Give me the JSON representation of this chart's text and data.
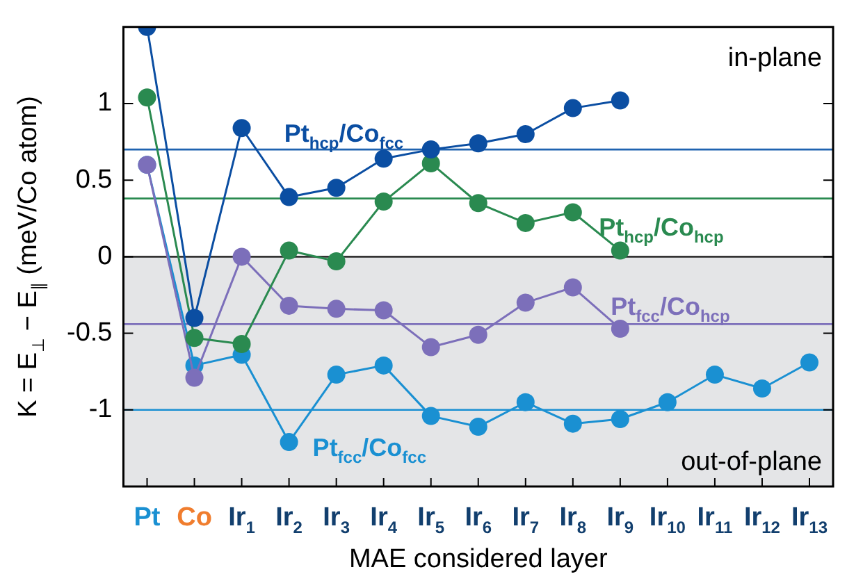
{
  "chart_data": {
    "type": "line",
    "xlabel": "MAE considered layer",
    "ylabel": "K = E$_{⊥}$ − E$_{∥}$ (meV/Co atom)",
    "categories": [
      "Pt",
      "Co",
      "Ir$_{1}$",
      "Ir$_{2}$",
      "Ir$_{3}$",
      "Ir$_{4}$",
      "Ir$_{5}$",
      "Ir$_{6}$",
      "Ir$_{7}$",
      "Ir$_{8}$",
      "Ir$_{9}$",
      "Ir$_{10}$",
      "Ir$_{11}$",
      "Ir$_{12}$",
      "Ir$_{13}$"
    ],
    "series": [
      {
        "name": "Pt$_{fcc}$/Co$_{fcc}$",
        "color": "#1a90d2",
        "values": [
          0.6,
          -0.71,
          -0.64,
          -1.21,
          -0.77,
          -0.71,
          -1.04,
          -1.11,
          -0.95,
          -1.09,
          -1.06,
          -0.95,
          -0.77,
          -0.86,
          -0.69
        ]
      },
      {
        "name": "Pt$_{fcc}$/Co$_{hcp}$",
        "color": "#7c6fba",
        "values": [
          0.6,
          -0.79,
          0.0,
          -0.32,
          -0.34,
          -0.35,
          -0.59,
          -0.51,
          -0.3,
          -0.2,
          -0.47,
          null,
          null,
          null,
          null
        ]
      },
      {
        "name": "Pt$_{hcp}$/Co$_{hcp}$",
        "color": "#2a8a50",
        "values": [
          1.04,
          -0.53,
          -0.57,
          0.04,
          -0.03,
          0.36,
          0.61,
          0.35,
          0.22,
          0.29,
          0.04,
          null,
          null,
          null,
          null
        ]
      },
      {
        "name": "Pt$_{hcp}$/Co$_{fcc}$",
        "color": "#0b4ea2",
        "values": [
          1.5,
          -0.4,
          0.84,
          0.39,
          0.45,
          0.64,
          0.7,
          0.74,
          0.8,
          0.97,
          1.02,
          null,
          null,
          null,
          null
        ]
      }
    ],
    "ylim": [
      -1.5,
      1.5
    ],
    "yticks": [
      -1,
      -0.5,
      0,
      0.5,
      1
    ],
    "ref_lines": [
      {
        "axis": "y",
        "value": 0.7,
        "color": "#1f63b0"
      },
      {
        "axis": "y",
        "value": 0.38,
        "color": "#2a8a50"
      },
      {
        "axis": "y",
        "value": -0.44,
        "color": "#7c6fba"
      },
      {
        "axis": "y",
        "value": -1.0,
        "color": "#1a90d2"
      },
      {
        "axis": "y",
        "value": 0,
        "color": "#333333"
      }
    ],
    "bands": [
      {
        "axis": "y",
        "from": -1.5,
        "to": 0,
        "color": "#e4e5e7"
      }
    ],
    "annotations": [
      "in-plane",
      "out-of-plane"
    ],
    "marker": "circle",
    "line_style": "solid",
    "grid": false,
    "legend": false
  }
}
